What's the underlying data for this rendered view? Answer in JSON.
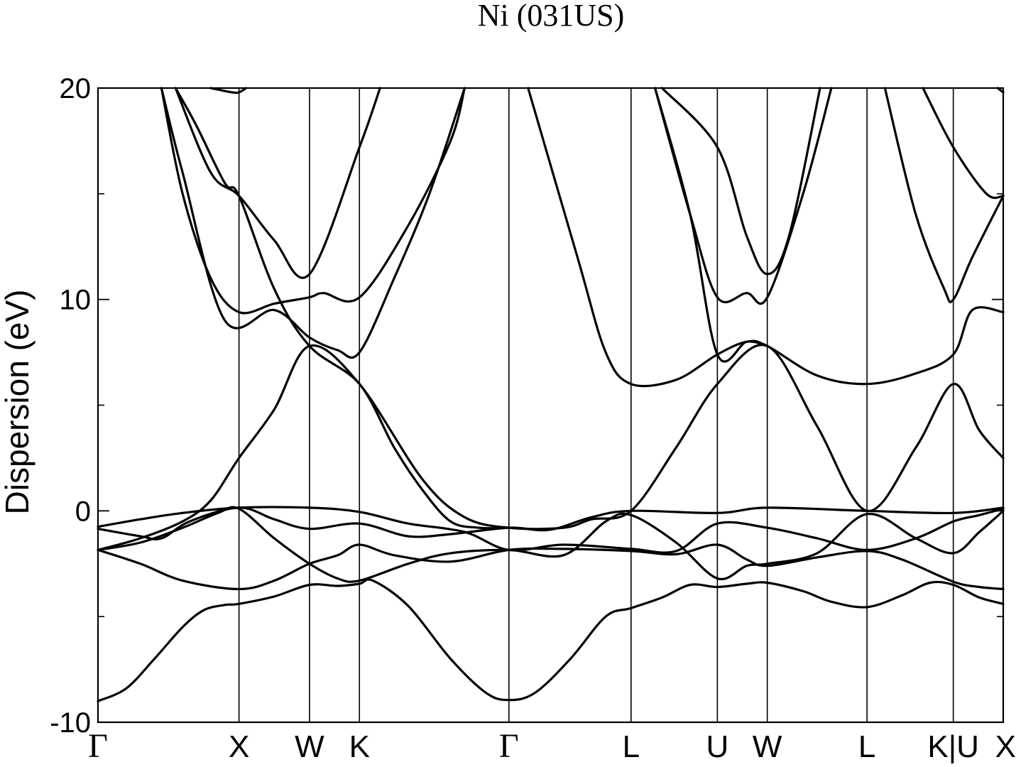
{
  "chart_data": {
    "type": "line",
    "title": "Ni (031US)",
    "xlabel": "",
    "ylabel": "Dispersion (eV)",
    "ylim": [
      -10,
      20
    ],
    "yticks": [
      -10,
      0,
      10,
      20
    ],
    "yminor": [
      -5,
      5,
      15
    ],
    "grid": false,
    "kpoints": [
      {
        "label": "Γ",
        "x": 0.0
      },
      {
        "label": "X",
        "x": 1.0
      },
      {
        "label": "W",
        "x": 1.5
      },
      {
        "label": "K",
        "x": 1.854
      },
      {
        "label": "Γ",
        "x": 2.914
      },
      {
        "label": "L",
        "x": 3.78
      },
      {
        "label": "U",
        "x": 4.392
      },
      {
        "label": "W",
        "x": 4.746
      },
      {
        "label": "L",
        "x": 5.453
      },
      {
        "label": "K|U",
        "x": 6.065
      },
      {
        "label": "X",
        "x": 6.419
      }
    ],
    "series": [
      {
        "values": [
          [
            0,
            -9
          ],
          [
            0.2,
            -8.4
          ],
          [
            0.4,
            -7.0
          ],
          [
            0.6,
            -5.5
          ],
          [
            0.75,
            -4.7
          ],
          [
            0.9,
            -4.45
          ],
          [
            1.0,
            -4.4
          ],
          [
            1.25,
            -4.05
          ],
          [
            1.5,
            -3.5
          ],
          [
            1.7,
            -3.55
          ],
          [
            1.854,
            -3.45
          ],
          [
            1.95,
            -3.3
          ],
          [
            2.2,
            -4.5
          ],
          [
            2.5,
            -7.0
          ],
          [
            2.75,
            -8.6
          ],
          [
            2.914,
            -8.95
          ],
          [
            3.1,
            -8.6
          ],
          [
            3.35,
            -7.0
          ],
          [
            3.6,
            -5.0
          ],
          [
            3.78,
            -4.6
          ],
          [
            4.0,
            -4.1
          ],
          [
            4.2,
            -3.5
          ],
          [
            4.392,
            -3.6
          ],
          [
            4.6,
            -3.45
          ],
          [
            4.746,
            -3.4
          ],
          [
            5.0,
            -3.8
          ],
          [
            5.2,
            -4.3
          ],
          [
            5.453,
            -4.55
          ],
          [
            5.7,
            -4.0
          ],
          [
            5.9,
            -3.4
          ],
          [
            6.065,
            -3.5
          ],
          [
            6.25,
            -4.1
          ],
          [
            6.419,
            -4.4
          ]
        ]
      },
      {
        "values": [
          [
            0,
            -1.85
          ],
          [
            0.3,
            -2.5
          ],
          [
            0.6,
            -3.3
          ],
          [
            1.0,
            -3.7
          ],
          [
            1.25,
            -3.3
          ],
          [
            1.5,
            -2.5
          ],
          [
            1.7,
            -2.1
          ],
          [
            1.854,
            -1.6
          ],
          [
            2.1,
            -2.1
          ],
          [
            2.5,
            -2.4
          ],
          [
            2.914,
            -1.85
          ],
          [
            3.3,
            -1.8
          ],
          [
            3.78,
            -1.9
          ],
          [
            4.1,
            -2.05
          ],
          [
            4.392,
            -1.6
          ],
          [
            4.6,
            -2.3
          ],
          [
            4.746,
            -2.6
          ],
          [
            5.1,
            -2.2
          ],
          [
            5.453,
            -1.9
          ],
          [
            5.7,
            -2.3
          ],
          [
            6.065,
            -3.35
          ],
          [
            6.25,
            -3.6
          ],
          [
            6.419,
            -3.7
          ]
        ]
      },
      {
        "values": [
          [
            0,
            -1.85
          ],
          [
            0.3,
            -1.5
          ],
          [
            0.6,
            -0.8
          ],
          [
            0.85,
            -0.1
          ],
          [
            1.0,
            0.1
          ],
          [
            1.25,
            -1.3
          ],
          [
            1.5,
            -2.5
          ],
          [
            1.7,
            -3.2
          ],
          [
            1.854,
            -3.3
          ],
          [
            2.2,
            -2.5
          ],
          [
            2.5,
            -2.0
          ],
          [
            2.914,
            -1.85
          ],
          [
            3.3,
            -2.1
          ],
          [
            3.6,
            -0.5
          ],
          [
            3.78,
            -0.2
          ],
          [
            4.1,
            -1.5
          ],
          [
            4.392,
            -3.2
          ],
          [
            4.6,
            -2.6
          ],
          [
            4.746,
            -2.5
          ],
          [
            5.1,
            -2.0
          ],
          [
            5.453,
            -0.15
          ],
          [
            5.8,
            -1.3
          ],
          [
            6.065,
            -2.0
          ],
          [
            6.25,
            -1.0
          ],
          [
            6.419,
            0.0
          ]
        ]
      },
      {
        "values": [
          [
            0,
            -0.75
          ],
          [
            0.3,
            -0.4
          ],
          [
            0.6,
            -0.1
          ],
          [
            1.0,
            0.15
          ],
          [
            1.5,
            0.15
          ],
          [
            1.854,
            -0.05
          ],
          [
            2.2,
            -0.6
          ],
          [
            2.6,
            -1.0
          ],
          [
            2.914,
            -1.85
          ],
          [
            3.3,
            -1.6
          ],
          [
            3.78,
            -1.8
          ],
          [
            4.1,
            -1.9
          ],
          [
            4.392,
            -0.6
          ],
          [
            4.746,
            -0.8
          ],
          [
            5.1,
            -1.3
          ],
          [
            5.453,
            -1.85
          ],
          [
            5.8,
            -1.3
          ],
          [
            6.065,
            -0.5
          ],
          [
            6.25,
            -0.2
          ],
          [
            6.419,
            0.1
          ]
        ]
      },
      {
        "values": [
          [
            0,
            -0.85
          ],
          [
            0.3,
            -1.2
          ],
          [
            0.45,
            -1.3
          ],
          [
            0.65,
            -0.5
          ],
          [
            1.0,
            0.15
          ],
          [
            1.25,
            -0.4
          ],
          [
            1.5,
            -0.85
          ],
          [
            1.854,
            -0.6
          ],
          [
            2.2,
            -1.2
          ],
          [
            2.5,
            -1.1
          ],
          [
            2.914,
            -0.8
          ],
          [
            3.2,
            -0.9
          ],
          [
            3.5,
            -0.3
          ],
          [
            3.78,
            0.0
          ],
          [
            4.392,
            -0.1
          ],
          [
            4.746,
            0.15
          ],
          [
            5.453,
            0.0
          ],
          [
            6.065,
            -0.1
          ],
          [
            6.419,
            0.15
          ]
        ]
      },
      {
        "values": [
          [
            0,
            -1.85
          ],
          [
            0.3,
            -1.3
          ],
          [
            0.6,
            -0.5
          ],
          [
            0.8,
            0.5
          ],
          [
            1.0,
            2.5
          ],
          [
            1.25,
            4.8
          ],
          [
            1.5,
            7.8
          ],
          [
            1.854,
            6.0
          ],
          [
            2.3,
            1.5
          ],
          [
            2.6,
            -0.3
          ],
          [
            2.914,
            -0.8
          ],
          [
            3.3,
            -0.8
          ],
          [
            3.5,
            -0.4
          ],
          [
            3.78,
            0.0
          ],
          [
            4.1,
            3.0
          ],
          [
            4.392,
            6.0
          ],
          [
            4.746,
            7.8
          ],
          [
            5.1,
            4.0
          ],
          [
            5.453,
            0.0
          ],
          [
            5.8,
            3.0
          ],
          [
            6.065,
            6.0
          ],
          [
            6.25,
            3.8
          ],
          [
            6.419,
            2.5
          ]
        ]
      },
      {
        "values": [
          [
            0.45,
            20
          ],
          [
            0.6,
            15.0
          ],
          [
            0.8,
            11.0
          ],
          [
            1.0,
            9.4
          ],
          [
            1.25,
            9.8
          ],
          [
            1.5,
            10.1
          ],
          [
            1.6,
            10.3
          ],
          [
            1.854,
            10.1
          ],
          [
            2.2,
            13.5
          ],
          [
            2.5,
            17.5
          ],
          [
            2.6,
            20
          ]
        ]
      },
      {
        "values": [
          [
            0.45,
            20
          ],
          [
            0.6,
            16.0
          ],
          [
            0.9,
            9.0
          ],
          [
            1.25,
            9.5
          ],
          [
            1.5,
            8.2
          ],
          [
            1.7,
            7.6
          ],
          [
            1.854,
            7.5
          ],
          [
            2.1,
            11.0
          ],
          [
            2.35,
            15.0
          ],
          [
            2.6,
            20
          ]
        ]
      },
      {
        "values": [
          [
            0.55,
            20
          ],
          [
            0.8,
            16.0
          ],
          [
            1.0,
            14.9
          ],
          [
            1.25,
            12.8
          ],
          [
            1.5,
            11.2
          ],
          [
            1.854,
            17.2
          ],
          [
            2.0,
            20
          ]
        ]
      },
      {
        "values": [
          [
            0.8,
            20
          ],
          [
            0.95,
            19.8
          ],
          [
            1.0,
            19.8
          ],
          [
            1.05,
            20
          ]
        ]
      },
      {
        "values": [
          [
            0.55,
            20
          ],
          [
            0.7,
            18.2
          ],
          [
            0.9,
            15.5
          ],
          [
            1.0,
            14.9
          ],
          [
            1.25,
            10.5
          ],
          [
            1.5,
            7.8
          ],
          [
            1.854,
            6.0
          ],
          [
            2.1,
            3.0
          ],
          [
            2.3,
            1.0
          ],
          [
            2.5,
            -0.5
          ],
          [
            2.7,
            -0.8
          ],
          [
            2.914,
            -0.8
          ]
        ]
      },
      {
        "values": [
          [
            3.05,
            20
          ],
          [
            3.4,
            12.0
          ],
          [
            3.6,
            7.5
          ],
          [
            3.78,
            6.0
          ],
          [
            4.1,
            6.2
          ],
          [
            4.392,
            7.4
          ],
          [
            4.6,
            8.0
          ],
          [
            4.746,
            7.8
          ],
          [
            5.1,
            6.4
          ],
          [
            5.453,
            6.0
          ],
          [
            5.8,
            6.5
          ],
          [
            6.065,
            7.4
          ],
          [
            6.2,
            9.5
          ],
          [
            6.419,
            9.4
          ]
        ]
      },
      {
        "values": [
          [
            4.0,
            20
          ],
          [
            4.392,
            17.2
          ],
          [
            4.6,
            13.0
          ],
          [
            4.746,
            11.2
          ],
          [
            4.9,
            13.0
          ],
          [
            5.12,
            20
          ]
        ]
      },
      {
        "values": [
          [
            3.95,
            20
          ],
          [
            4.2,
            14.0
          ],
          [
            4.392,
            10.1
          ],
          [
            4.6,
            10.3
          ],
          [
            4.746,
            10.1
          ],
          [
            5.0,
            15.0
          ],
          [
            5.2,
            20
          ]
        ]
      },
      {
        "values": [
          [
            3.95,
            20
          ],
          [
            4.2,
            14.0
          ],
          [
            4.392,
            7.4
          ],
          [
            4.6,
            8.0
          ],
          [
            4.746,
            7.8
          ]
        ]
      },
      {
        "values": [
          [
            5.58,
            20
          ],
          [
            5.8,
            14.0
          ],
          [
            6.0,
            10.5
          ],
          [
            6.065,
            10.0
          ],
          [
            6.2,
            12.0
          ],
          [
            6.419,
            14.9
          ]
        ]
      },
      {
        "values": [
          [
            5.85,
            20
          ],
          [
            6.065,
            17.2
          ],
          [
            6.3,
            15.0
          ],
          [
            6.419,
            14.9
          ]
        ]
      },
      {
        "values": [
          [
            6.38,
            20
          ],
          [
            6.419,
            19.8
          ]
        ]
      }
    ]
  }
}
